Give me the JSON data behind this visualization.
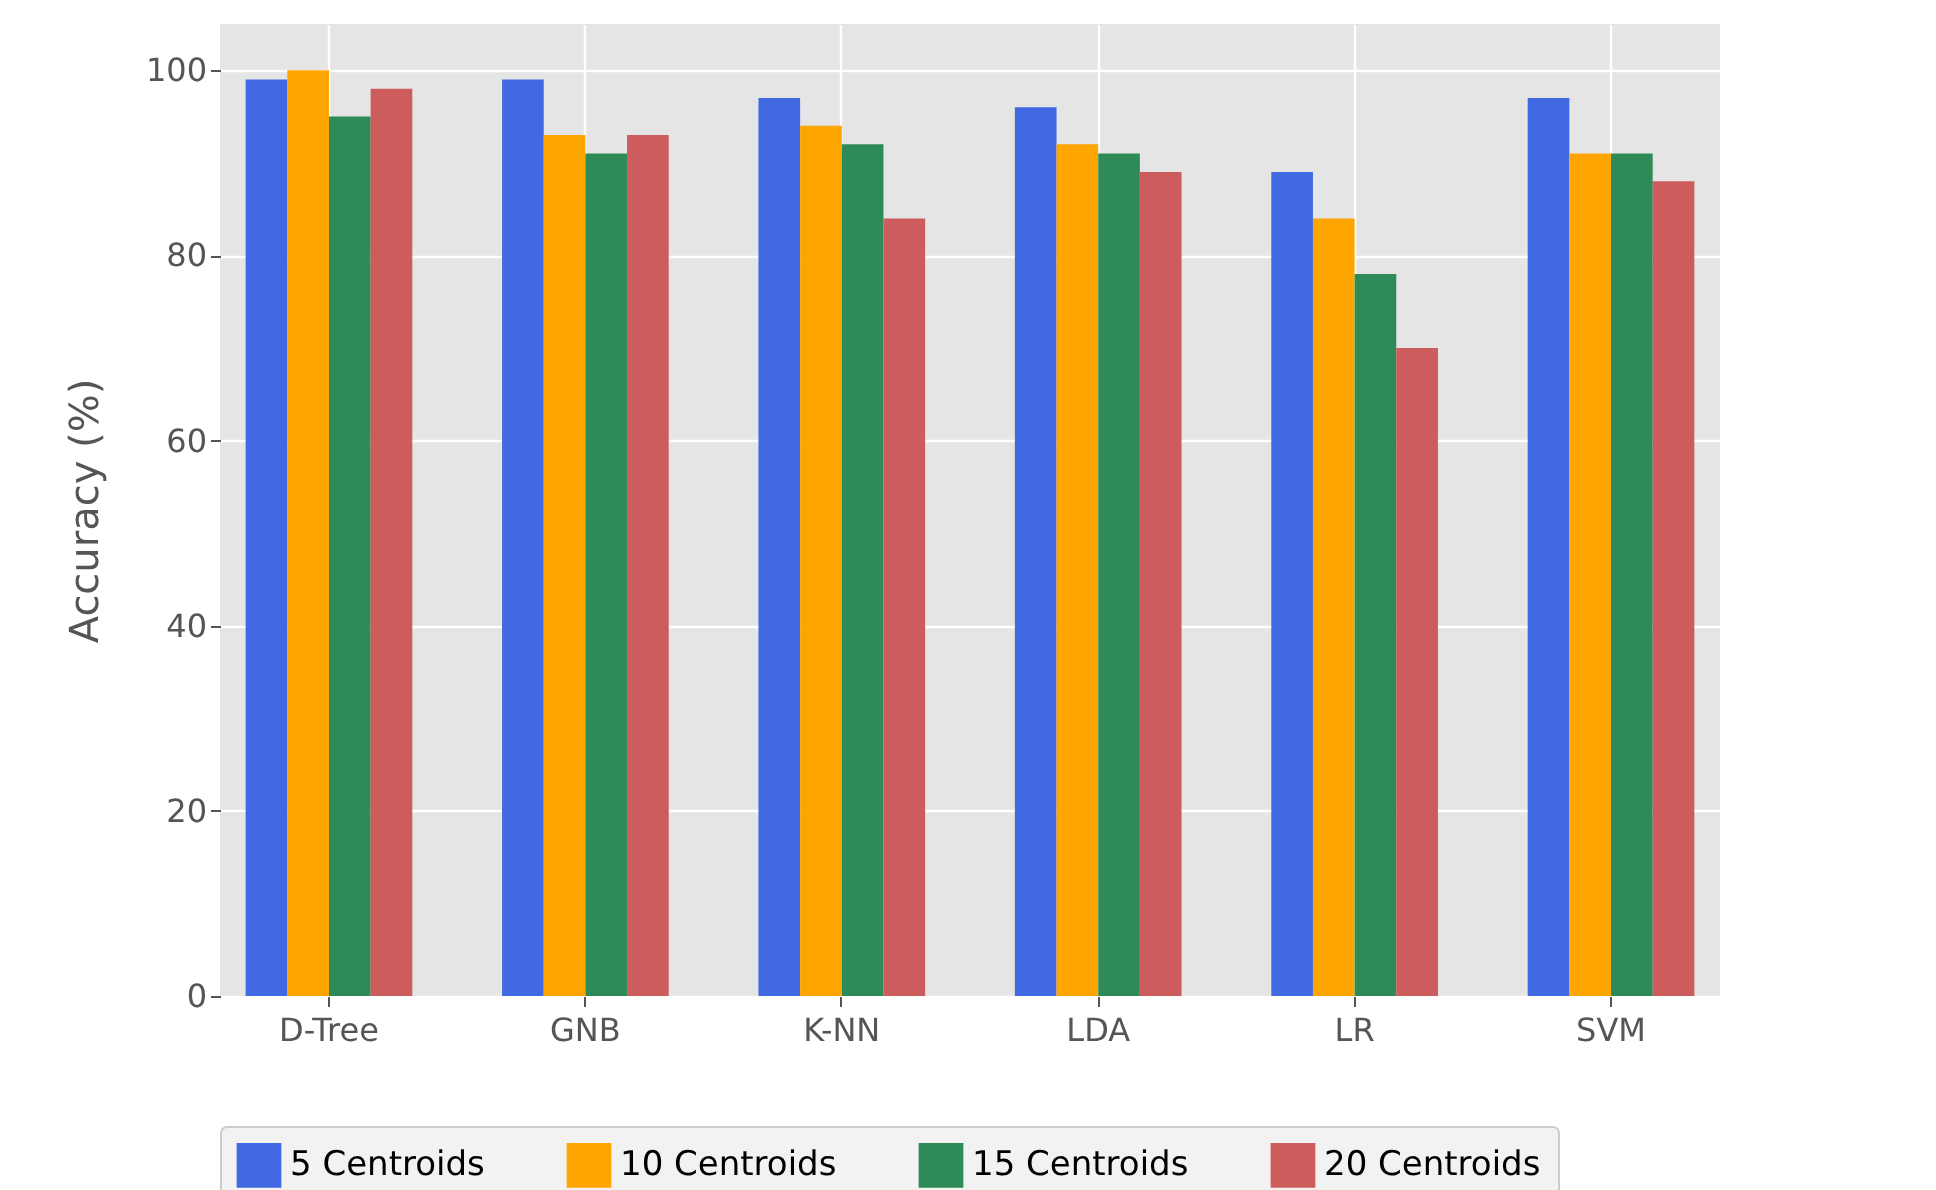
{
  "chart_data": {
    "type": "bar",
    "ylabel": "Accuracy (%)",
    "categories": [
      "D-Tree",
      "GNB",
      "K-NN",
      "LDA",
      "LR",
      "SVM"
    ],
    "series": [
      {
        "name": "5 Centroids",
        "color": "#4169e1",
        "values": [
          99,
          99,
          97,
          96,
          89,
          97
        ]
      },
      {
        "name": "10 Centroids",
        "color": "#ffa500",
        "values": [
          100,
          93,
          94,
          92,
          84,
          91
        ]
      },
      {
        "name": "15 Centroids",
        "color": "#2e8b57",
        "values": [
          95,
          91,
          92,
          91,
          78,
          91
        ]
      },
      {
        "name": "20 Centroids",
        "color": "#cd5c5c",
        "values": [
          98,
          93,
          84,
          89,
          70,
          88
        ]
      }
    ],
    "ylim": [
      0,
      105
    ],
    "yticks": [
      0,
      20,
      40,
      60,
      80,
      100
    ],
    "grid": true,
    "legend": "bottom"
  }
}
